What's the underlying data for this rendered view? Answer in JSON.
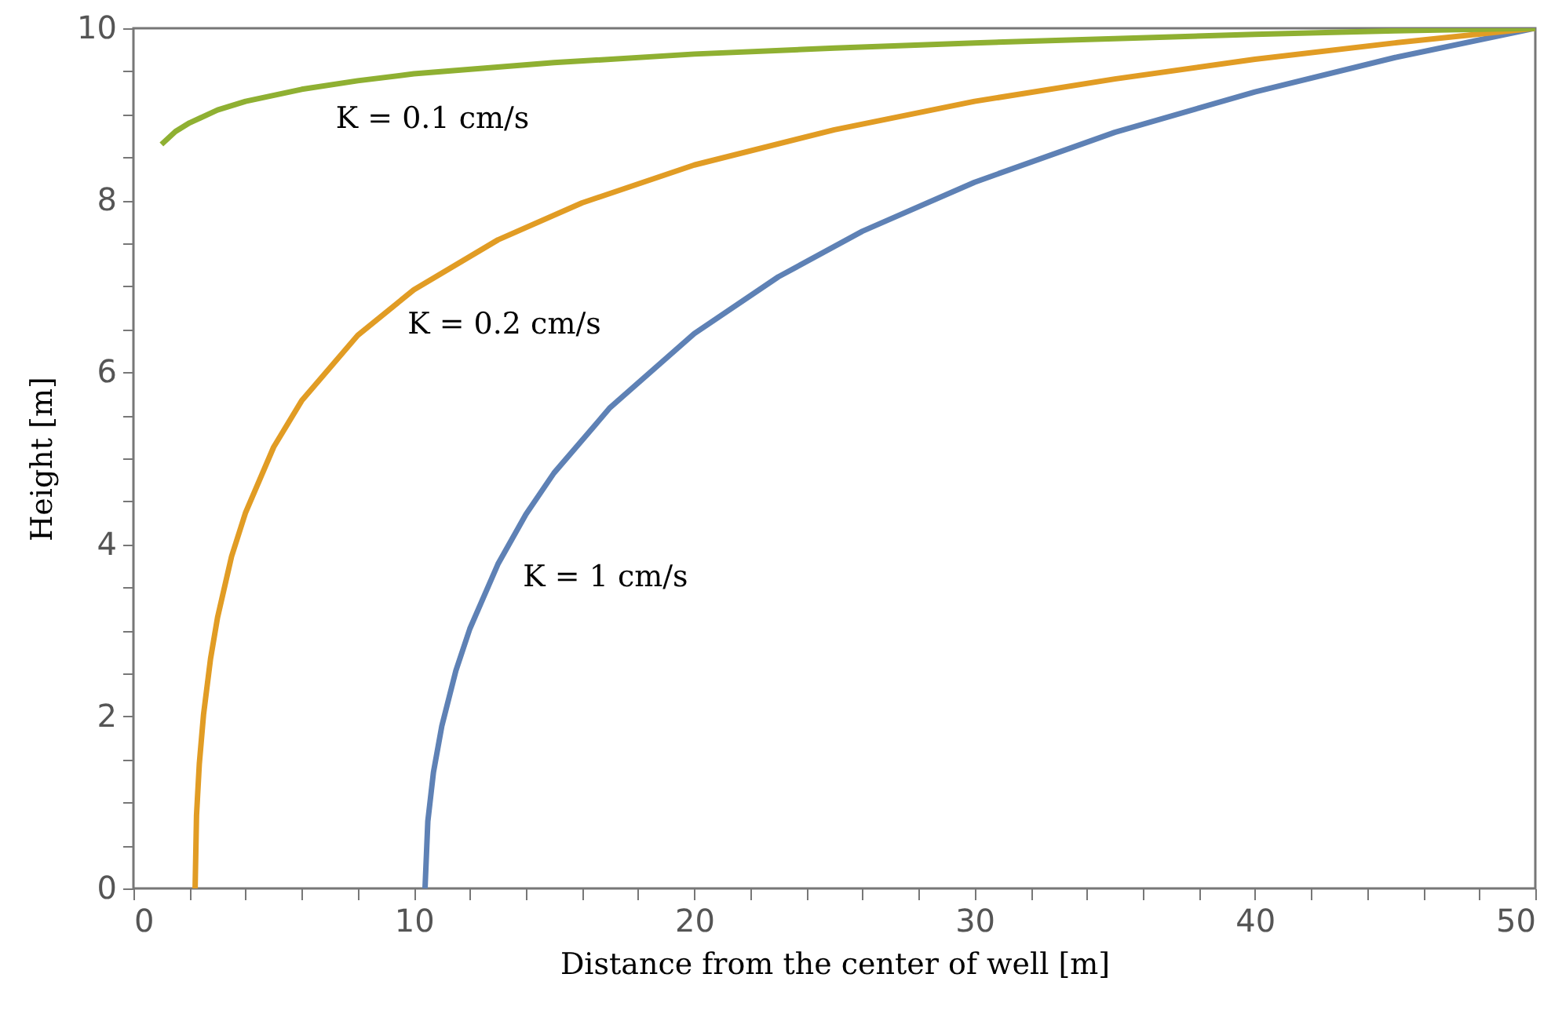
{
  "chart_data": {
    "type": "line",
    "xlabel": "Distance from the center of well [m]",
    "ylabel": "Height [m]",
    "xlim": [
      0,
      50
    ],
    "ylim": [
      0,
      10
    ],
    "xticks": [
      0,
      {
        "value": 2,
        "label": null
      },
      {
        "value": 4,
        "label": null
      },
      {
        "value": 6,
        "label": null
      },
      {
        "value": 8,
        "label": null
      },
      10,
      {
        "value": 12,
        "label": null
      },
      {
        "value": 14,
        "label": null
      },
      {
        "value": 16,
        "label": null
      },
      {
        "value": 18,
        "label": null
      },
      20,
      {
        "value": 22,
        "label": null
      },
      {
        "value": 24,
        "label": null
      },
      {
        "value": 26,
        "label": null
      },
      {
        "value": 28,
        "label": null
      },
      30,
      {
        "value": 32,
        "label": null
      },
      {
        "value": 34,
        "label": null
      },
      {
        "value": 36,
        "label": null
      },
      {
        "value": 38,
        "label": null
      },
      40,
      {
        "value": 42,
        "label": null
      },
      {
        "value": 44,
        "label": null
      },
      {
        "value": 46,
        "label": null
      },
      {
        "value": 48,
        "label": null
      },
      50
    ],
    "yticks": [
      0,
      {
        "value": 0.5,
        "label": null
      },
      {
        "value": 1,
        "label": null
      },
      {
        "value": 1.5,
        "label": null
      },
      2,
      {
        "value": 2.5,
        "label": null
      },
      {
        "value": 3,
        "label": null
      },
      {
        "value": 3.5,
        "label": null
      },
      4,
      {
        "value": 4.5,
        "label": null
      },
      {
        "value": 5,
        "label": null
      },
      {
        "value": 5.5,
        "label": null
      },
      6,
      {
        "value": 6.5,
        "label": null
      },
      {
        "value": 7,
        "label": null
      },
      {
        "value": 7.5,
        "label": null
      },
      8,
      {
        "value": 8.5,
        "label": null
      },
      {
        "value": 9,
        "label": null
      },
      {
        "value": 9.5,
        "label": null
      },
      10
    ],
    "grid": false,
    "marker": "none",
    "line_style": "solid",
    "series": [
      {
        "name": "K = 1 cm/s",
        "color": "#5e81b5",
        "x": [
          10.4,
          10.5,
          10.7,
          11,
          11.5,
          12,
          13,
          14,
          15,
          17,
          20,
          23,
          26,
          30,
          35,
          40,
          45,
          50
        ],
        "values": [
          0,
          0.78,
          1.35,
          1.89,
          2.53,
          3.02,
          3.77,
          4.35,
          4.83,
          5.59,
          6.45,
          7.11,
          7.64,
          8.21,
          8.79,
          9.26,
          9.66,
          10
        ]
      },
      {
        "name": "K = 0.2 cm/s",
        "color": "#e19c24",
        "x": [
          2.2,
          2.25,
          2.35,
          2.5,
          2.75,
          3,
          3.5,
          4,
          5,
          6,
          8,
          10,
          13,
          16,
          20,
          25,
          30,
          35,
          40,
          45,
          50
        ],
        "values": [
          0,
          0.85,
          1.45,
          2.02,
          2.67,
          3.15,
          3.86,
          4.37,
          5.13,
          5.67,
          6.43,
          6.96,
          7.54,
          7.97,
          8.41,
          8.82,
          9.15,
          9.41,
          9.64,
          9.83,
          10
        ]
      },
      {
        "name": "K = 0.1 cm/s",
        "color": "#8fb032",
        "x": [
          1,
          1.5,
          2,
          3,
          4,
          6,
          8,
          10,
          15,
          20,
          25,
          30,
          35,
          40,
          45,
          50
        ],
        "values": [
          8.65,
          8.8,
          8.9,
          9.05,
          9.15,
          9.29,
          9.39,
          9.47,
          9.6,
          9.7,
          9.77,
          9.83,
          9.88,
          9.93,
          9.97,
          10
        ]
      }
    ]
  }
}
